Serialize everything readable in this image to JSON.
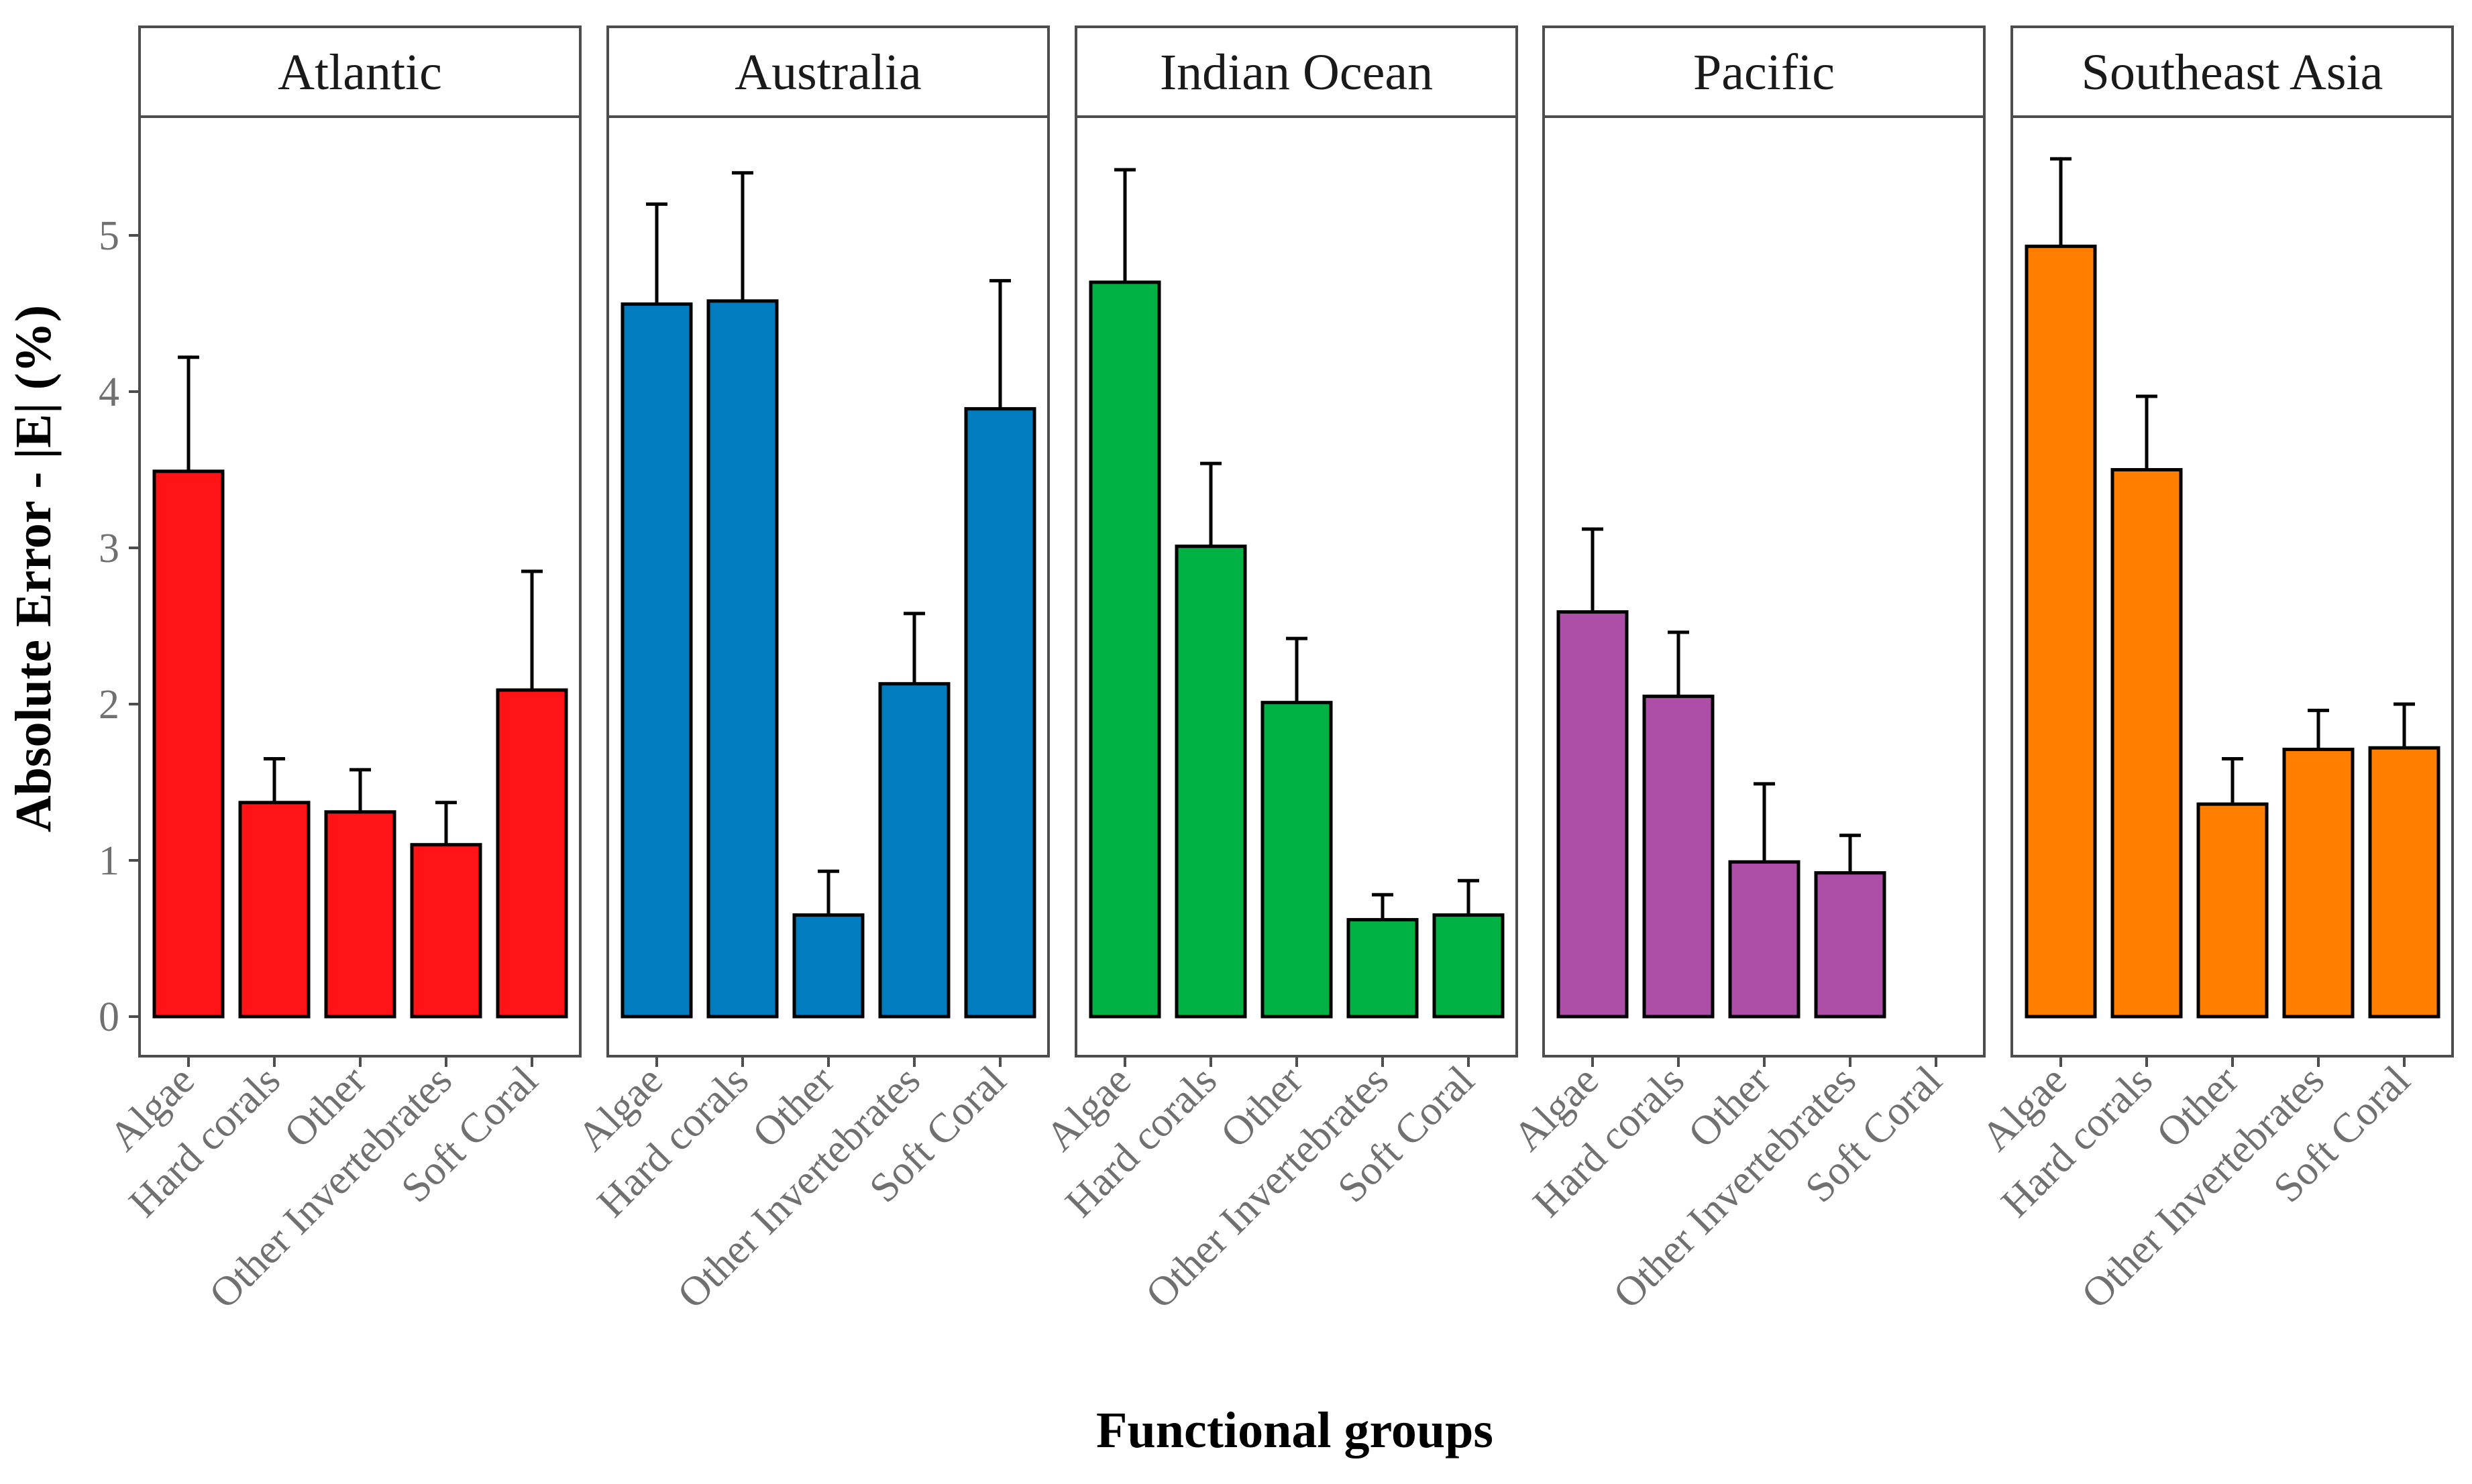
{
  "chart_data": {
    "type": "bar",
    "xlabel": "Functional groups",
    "ylabel": "Absolute Error - |E| (%)",
    "ylim": [
      -0.27,
      5.77
    ],
    "yticks": [
      "0",
      "1",
      "2",
      "3",
      "4",
      "5"
    ],
    "grid": false,
    "categories": [
      "Algae",
      "Hard corals",
      "Other",
      "Other Invertebrates",
      "Soft Coral"
    ],
    "panels": [
      {
        "name": "Atlantic",
        "color": "#ff1317",
        "values": [
          3.49,
          1.37,
          1.31,
          1.1,
          2.09
        ],
        "err_upper": [
          4.22,
          1.65,
          1.58,
          1.37,
          2.85
        ]
      },
      {
        "name": "Australia",
        "color": "#007cbf",
        "values": [
          4.56,
          4.58,
          0.65,
          2.13,
          3.89
        ],
        "err_upper": [
          5.2,
          5.4,
          0.93,
          2.58,
          4.71
        ]
      },
      {
        "name": "Indian Ocean",
        "color": "#00b144",
        "values": [
          4.7,
          3.01,
          2.01,
          0.62,
          0.65
        ],
        "err_upper": [
          5.42,
          3.54,
          2.42,
          0.78,
          0.87
        ]
      },
      {
        "name": "Pacific",
        "color": "#ae4fa7",
        "values": [
          2.59,
          2.05,
          0.99,
          0.92,
          null
        ],
        "err_upper": [
          3.12,
          2.46,
          1.49,
          1.16,
          null
        ]
      },
      {
        "name": "Southeast Asia",
        "color": "#ff7e00",
        "values": [
          4.93,
          3.5,
          1.36,
          1.71,
          1.72
        ],
        "err_upper": [
          5.49,
          3.97,
          1.65,
          1.96,
          2.0
        ]
      }
    ]
  }
}
